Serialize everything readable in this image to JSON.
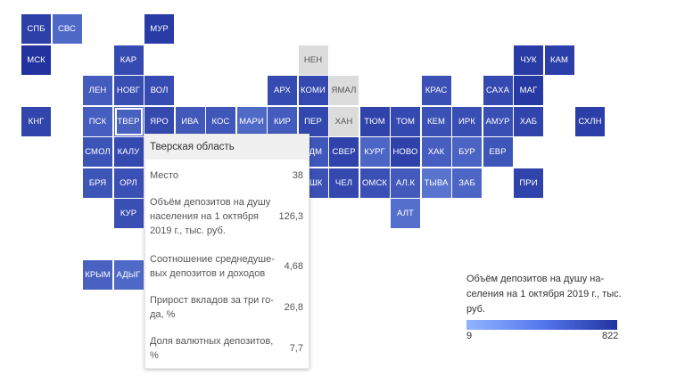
{
  "map": {
    "colors": {
      "na": "#dcdcdc",
      "low": "#8fb5ff",
      "high": "#22339f"
    },
    "regions": [
      {
        "label": "СПБ",
        "col": 0,
        "row": 0,
        "value": 480
      },
      {
        "label": "СВС",
        "col": 1,
        "row": 0,
        "value": 90
      },
      {
        "label": "МУР",
        "col": 4,
        "row": 0,
        "value": 560
      },
      {
        "label": "МСК",
        "col": 0,
        "row": 1,
        "value": 822
      },
      {
        "label": "КАР",
        "col": 3,
        "row": 1,
        "value": 300
      },
      {
        "label": "НЕН",
        "col": 9,
        "row": 1,
        "value": null
      },
      {
        "label": "ЧУК",
        "col": 16,
        "row": 1,
        "value": 560
      },
      {
        "label": "КАМ",
        "col": 17,
        "row": 1,
        "value": 500
      },
      {
        "label": "ЛЕН",
        "col": 2,
        "row": 2,
        "value": 150
      },
      {
        "label": "НОВГ",
        "col": 3,
        "row": 2,
        "value": 260
      },
      {
        "label": "ВОЛ",
        "col": 4,
        "row": 2,
        "value": 280
      },
      {
        "label": "АРХ",
        "col": 8,
        "row": 2,
        "value": 300
      },
      {
        "label": "КОМИ",
        "col": 9,
        "row": 2,
        "value": 330
      },
      {
        "label": "ЯМАЛ",
        "col": 10,
        "row": 2,
        "value": null
      },
      {
        "label": "КРАС",
        "col": 13,
        "row": 2,
        "value": 230
      },
      {
        "label": "САХА",
        "col": 15,
        "row": 2,
        "value": 310
      },
      {
        "label": "МАГ",
        "col": 16,
        "row": 2,
        "value": 620
      },
      {
        "label": "КНГ",
        "col": 0,
        "row": 3,
        "value": 380
      },
      {
        "label": "ПСК",
        "col": 2,
        "row": 3,
        "value": 140
      },
      {
        "label": "ТВЕР",
        "col": 3,
        "row": 3,
        "value": 126.3,
        "selected": true
      },
      {
        "label": "ЯРО",
        "col": 4,
        "row": 3,
        "value": 320
      },
      {
        "label": "ИВА",
        "col": 5,
        "row": 3,
        "value": 170
      },
      {
        "label": "КОС",
        "col": 6,
        "row": 3,
        "value": 180
      },
      {
        "label": "МАРИ",
        "col": 7,
        "row": 3,
        "value": 90
      },
      {
        "label": "КИР",
        "col": 8,
        "row": 3,
        "value": 150
      },
      {
        "label": "ПЕР",
        "col": 9,
        "row": 3,
        "value": 340
      },
      {
        "label": "ХАН",
        "col": 10,
        "row": 3,
        "value": null
      },
      {
        "label": "ТЮМ",
        "col": 11,
        "row": 3,
        "value": 420
      },
      {
        "label": "ТОМ",
        "col": 12,
        "row": 3,
        "value": 310
      },
      {
        "label": "КЕМ",
        "col": 13,
        "row": 3,
        "value": 230
      },
      {
        "label": "ИРК",
        "col": 14,
        "row": 3,
        "value": 260
      },
      {
        "label": "АМУР",
        "col": 15,
        "row": 3,
        "value": 250
      },
      {
        "label": "ХАБ",
        "col": 16,
        "row": 3,
        "value": 400
      },
      {
        "label": "СХЛН",
        "col": 18,
        "row": 3,
        "value": 500
      },
      {
        "label": "СМОЛ",
        "col": 2,
        "row": 4,
        "value": 210
      },
      {
        "label": "КАЛУ",
        "col": 3,
        "row": 4,
        "value": 310
      },
      {
        "label": "УДМ",
        "col": 9,
        "row": 4,
        "value": 180
      },
      {
        "label": "СВЕР",
        "col": 10,
        "row": 4,
        "value": 420
      },
      {
        "label": "КУРГ",
        "col": 11,
        "row": 4,
        "value": 100
      },
      {
        "label": "НОВО",
        "col": 12,
        "row": 4,
        "value": 430
      },
      {
        "label": "ХАК",
        "col": 13,
        "row": 4,
        "value": 140
      },
      {
        "label": "БУР",
        "col": 14,
        "row": 4,
        "value": 110
      },
      {
        "label": "ЕВР",
        "col": 15,
        "row": 4,
        "value": 190
      },
      {
        "label": "БРЯ",
        "col": 2,
        "row": 5,
        "value": 200
      },
      {
        "label": "ОРЛ",
        "col": 3,
        "row": 5,
        "value": 240
      },
      {
        "label": "БШК",
        "col": 9,
        "row": 5,
        "value": 230
      },
      {
        "label": "ЧЕЛ",
        "col": 10,
        "row": 5,
        "value": 330
      },
      {
        "label": "ОМСК",
        "col": 11,
        "row": 5,
        "value": 240
      },
      {
        "label": "АЛ.К",
        "col": 12,
        "row": 5,
        "value": 160
      },
      {
        "label": "ТЫВА",
        "col": 13,
        "row": 5,
        "value": 60
      },
      {
        "label": "ЗАБ",
        "col": 14,
        "row": 5,
        "value": 100
      },
      {
        "label": "ПРИ",
        "col": 16,
        "row": 5,
        "value": 420
      },
      {
        "label": "КУР",
        "col": 3,
        "row": 6,
        "value": 250
      },
      {
        "label": "АЛТ",
        "col": 12,
        "row": 6,
        "value": 70
      },
      {
        "label": "КРЫМ",
        "col": 2,
        "row": 8,
        "value": 120
      },
      {
        "label": "АДЫГ",
        "col": 3,
        "row": 8,
        "value": 90
      }
    ]
  },
  "tooltip": {
    "title": "Тверская область",
    "rows": [
      {
        "label": "Место",
        "value": "38"
      },
      {
        "label": "Объём депозитов на душу населения на 1 октября 2019 г., тыс. руб.",
        "value": "126,3"
      },
      {
        "label": "Соотношение среднедуше-вых депозитов и доходов",
        "value": "4,68"
      },
      {
        "label": "Прирост вкладов за три го-да, %",
        "value": "26,8"
      },
      {
        "label": "Доля валютных депозитов, %",
        "value": "7,7"
      }
    ]
  },
  "legend": {
    "title": "Объём депозитов на душу на-селения на 1 октября 2019 г., тыс. руб.",
    "min": "9",
    "max": "822"
  }
}
